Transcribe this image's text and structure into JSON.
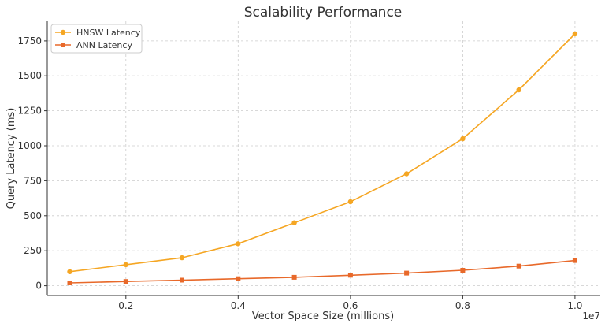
{
  "chart_data": {
    "type": "line",
    "title": "Scalability Performance",
    "xlabel": "Vector Space Size (millions)",
    "ylabel": "Query Latency (ms)",
    "x_offset_label": "1e7",
    "x": [
      1000000,
      2000000,
      3000000,
      4000000,
      5000000,
      6000000,
      7000000,
      8000000,
      9000000,
      10000000
    ],
    "xlim": [
      600000,
      10450000
    ],
    "ylim": [
      -70,
      1890
    ],
    "x_ticks": [
      2000000,
      4000000,
      6000000,
      8000000,
      10000000
    ],
    "x_tick_labels": [
      "0.2",
      "0.4",
      "0.6",
      "0.8",
      "1.0"
    ],
    "y_ticks": [
      0,
      250,
      500,
      750,
      1000,
      1250,
      1500,
      1750
    ],
    "y_tick_labels": [
      "0",
      "250",
      "500",
      "750",
      "1000",
      "1250",
      "1500",
      "1750"
    ],
    "grid": true,
    "legend_position": "top-left",
    "series": [
      {
        "name": "HNSW Latency",
        "color": "#F5A623",
        "marker": "circle",
        "values": [
          100,
          150,
          200,
          300,
          450,
          600,
          800,
          1050,
          1400,
          1800
        ]
      },
      {
        "name": "ANN Latency",
        "color": "#E8692A",
        "marker": "square",
        "values": [
          20,
          30,
          40,
          50,
          60,
          75,
          90,
          110,
          140,
          180
        ]
      }
    ]
  }
}
